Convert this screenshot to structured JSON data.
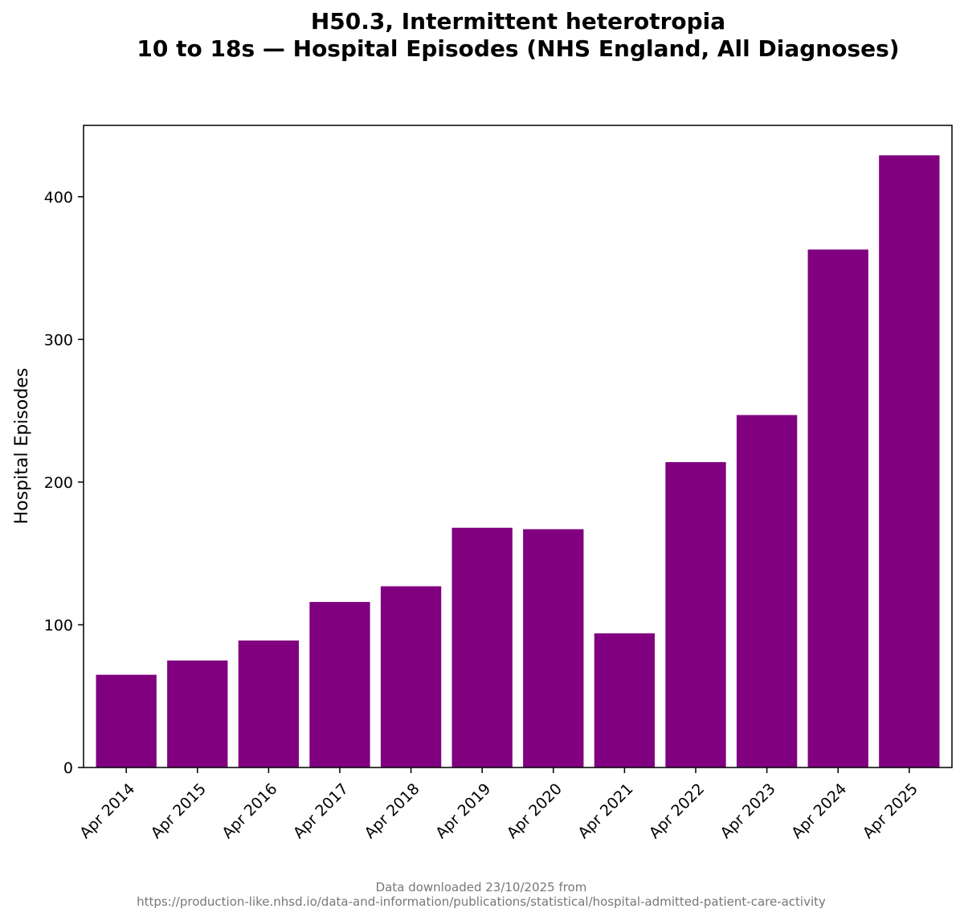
{
  "chart_data": {
    "type": "bar",
    "title_lines": [
      "H50.3, Intermittent heterotropia",
      "10 to 18s — Hospital Episodes (NHS England, All Diagnoses)"
    ],
    "categories": [
      "Apr 2014",
      "Apr 2015",
      "Apr 2016",
      "Apr 2017",
      "Apr 2018",
      "Apr 2019",
      "Apr 2020",
      "Apr 2021",
      "Apr 2022",
      "Apr 2023",
      "Apr 2024",
      "Apr 2025"
    ],
    "values": [
      65,
      75,
      89,
      116,
      127,
      168,
      167,
      94,
      214,
      247,
      363,
      429
    ],
    "xlabel": "",
    "ylabel": "Hospital Episodes",
    "ylim": [
      0,
      450
    ],
    "yticks": [
      0,
      100,
      200,
      300,
      400
    ],
    "bar_color": "#800080",
    "grid": false
  },
  "source_note": {
    "line1": "Data downloaded 23/10/2025 from",
    "line2": "https://production-like.nhsd.io/data-and-information/publications/statistical/hospital-admitted-patient-care-activity"
  }
}
